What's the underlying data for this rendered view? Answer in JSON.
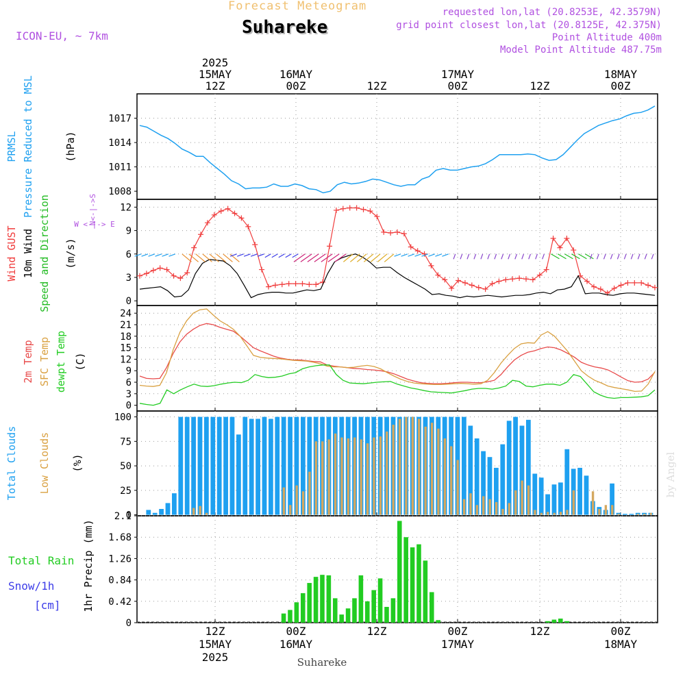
{
  "header": {
    "subtitle": "Forecast Meteogram",
    "location": "Suhareke",
    "model": "ICON-EU, ~ 7km",
    "requested": "requested lon,lat (20.8253E, 42.3579N)",
    "grid_point": "grid point closest lon,lat (20.8125E, 42.375N)",
    "point_altitude": "Point Altitude 400m",
    "model_altitude": "Model Point Altitude 487.75m",
    "footer_label": "Suhareke",
    "credit": "by Angel"
  },
  "colors": {
    "pressure": "#1ea0f0",
    "gust": "#f03c3c",
    "wind": "#000000",
    "direction": "#22bb22",
    "temp": "#e84a4a",
    "sfc": "#d9a040",
    "dew": "#22cc22",
    "total_cloud": "#1ea0f0",
    "low_cloud": "#d4a860",
    "rain": "#22cc22",
    "snow": "#3c3ce8",
    "label_purple": "#b050e0",
    "title_orange": "#f0c070"
  },
  "time_axis": {
    "top_labels": [
      {
        "lines": [
          "2025",
          "15MAY",
          "12Z"
        ],
        "tick": 0
      },
      {
        "lines": [
          "16MAY",
          "00Z"
        ],
        "tick": 1
      },
      {
        "lines": [
          "12Z"
        ],
        "tick": 2
      },
      {
        "lines": [
          "17MAY",
          "00Z"
        ],
        "tick": 3
      },
      {
        "lines": [
          "12Z"
        ],
        "tick": 4
      },
      {
        "lines": [
          "18MAY",
          "00Z"
        ],
        "tick": 5
      }
    ],
    "bottom_labels": [
      {
        "lines": [
          "12Z",
          "15MAY",
          "2025"
        ],
        "tick": 0
      },
      {
        "lines": [
          "00Z",
          "16MAY"
        ],
        "tick": 1
      },
      {
        "lines": [
          "12Z"
        ],
        "tick": 2
      },
      {
        "lines": [
          "00Z",
          "17MAY"
        ],
        "tick": 3
      },
      {
        "lines": [
          "12Z"
        ],
        "tick": 4
      },
      {
        "lines": [
          "00Z",
          "18MAY"
        ],
        "tick": 5
      }
    ]
  },
  "chart_data": [
    {
      "type": "line",
      "title": "PRMSL Pressure Reduced to MSL",
      "ylabel": "(hPa)",
      "ylim": [
        1007,
        1020
      ],
      "yticks": [
        1008,
        1011,
        1014,
        1017
      ],
      "series": [
        {
          "name": "PRMSL",
          "color_key": "pressure",
          "values": [
            1016.1,
            1015.9,
            1015.4,
            1014.9,
            1014.5,
            1013.9,
            1013.2,
            1012.8,
            1012.3,
            1012.3,
            1011.5,
            1010.8,
            1010.1,
            1009.3,
            1008.9,
            1008.3,
            1008.4,
            1008.4,
            1008.5,
            1008.9,
            1008.6,
            1008.6,
            1008.9,
            1008.7,
            1008.3,
            1008.2,
            1007.8,
            1008.0,
            1008.8,
            1009.1,
            1008.9,
            1009.0,
            1009.2,
            1009.5,
            1009.4,
            1009.1,
            1008.8,
            1008.6,
            1008.8,
            1008.8,
            1009.5,
            1009.8,
            1010.6,
            1010.8,
            1010.6,
            1010.6,
            1010.8,
            1011.0,
            1011.1,
            1011.4,
            1011.9,
            1012.5,
            1012.5,
            1012.5,
            1012.5,
            1012.6,
            1012.5,
            1012.1,
            1011.8,
            1011.9,
            1012.5,
            1013.4,
            1014.3,
            1015.1,
            1015.6,
            1016.1,
            1016.4,
            1016.7,
            1016.9,
            1017.3,
            1017.6,
            1017.7,
            1018.0,
            1018.5
          ]
        }
      ]
    },
    {
      "type": "line",
      "title": "Wind GUST / 10m Wind Speed and Direction",
      "ylabel": "(m/s)",
      "direction_legend": [
        "N",
        "W <-|-> E",
        "S"
      ],
      "ylim": [
        -0.6,
        13
      ],
      "yticks": [
        0,
        3,
        6,
        9,
        12
      ],
      "series": [
        {
          "name": "Wind GUST",
          "color_key": "gust",
          "values": [
            3.2,
            3.5,
            3.9,
            4.2,
            4.0,
            3.2,
            2.9,
            3.6,
            6.8,
            8.5,
            10.0,
            11.0,
            11.5,
            11.8,
            11.2,
            10.6,
            9.5,
            7.2,
            4.0,
            1.8,
            2.0,
            2.1,
            2.2,
            2.2,
            2.2,
            2.1,
            2.1,
            2.4,
            7.0,
            11.6,
            11.8,
            11.9,
            11.9,
            11.7,
            11.5,
            10.8,
            8.8,
            8.7,
            8.8,
            8.6,
            6.9,
            6.4,
            6.0,
            4.5,
            3.3,
            2.7,
            1.6,
            2.6,
            2.3,
            2.0,
            1.7,
            1.5,
            2.2,
            2.5,
            2.7,
            2.8,
            2.9,
            2.8,
            2.7,
            3.3,
            4.0,
            8.0,
            6.8,
            8.0,
            6.5,
            3.2,
            2.5,
            1.8,
            1.5,
            1.0,
            1.6,
            2.0,
            2.3,
            2.3,
            2.3,
            2.0,
            1.7
          ]
        },
        {
          "name": "10m Wind",
          "color_key": "wind",
          "values": [
            1.5,
            1.6,
            1.7,
            1.8,
            1.3,
            0.5,
            0.6,
            1.4,
            3.5,
            4.8,
            5.3,
            5.2,
            5.1,
            4.5,
            3.5,
            2.0,
            0.4,
            0.8,
            1.0,
            1.1,
            1.1,
            1.0,
            1.0,
            1.2,
            1.4,
            1.3,
            1.5,
            3.5,
            5.0,
            5.5,
            5.8,
            6.0,
            5.6,
            5.0,
            4.2,
            4.3,
            4.3,
            3.6,
            3.0,
            2.5,
            2.0,
            1.5,
            0.8,
            0.9,
            0.7,
            0.6,
            0.4,
            0.6,
            0.5,
            0.6,
            0.7,
            0.6,
            0.5,
            0.6,
            0.7,
            0.7,
            0.8,
            1.0,
            1.1,
            0.9,
            1.4,
            1.5,
            1.8,
            3.2,
            0.9,
            1.0,
            1.0,
            0.8,
            0.7,
            0.9,
            1.0,
            1.0,
            0.9,
            0.8,
            0.7
          ]
        }
      ]
    },
    {
      "type": "line",
      "title": "2m Temp / SFC Temp / dewpt Temp",
      "ylabel": "(C)",
      "ylim": [
        -1.5,
        26
      ],
      "yticks": [
        0,
        3,
        6,
        9,
        12,
        15,
        18,
        21,
        24
      ],
      "series": [
        {
          "name": "2m Temp",
          "color_key": "temp",
          "values": [
            7.6,
            7.0,
            6.9,
            7.0,
            9.8,
            13.5,
            16.5,
            18.5,
            19.8,
            20.8,
            21.3,
            21.0,
            20.3,
            19.8,
            19.3,
            18.0,
            16.5,
            15.0,
            14.2,
            13.5,
            12.8,
            12.3,
            12.0,
            11.8,
            11.8,
            11.6,
            11.4,
            11.3,
            10.5,
            10.2,
            10.0,
            9.8,
            9.6,
            9.5,
            9.3,
            9.2,
            9.0,
            8.7,
            8.2,
            7.5,
            6.8,
            6.3,
            5.9,
            5.7,
            5.6,
            5.6,
            5.7,
            5.9,
            6.0,
            6.0,
            5.9,
            5.9,
            6.1,
            6.5,
            8.0,
            10.0,
            11.8,
            13.0,
            13.8,
            14.2,
            14.8,
            15.2,
            15.0,
            14.4,
            13.5,
            12.5,
            11.2,
            10.5,
            10.0,
            9.7,
            9.2,
            8.3,
            7.3,
            6.4,
            6.0,
            6.1,
            6.8,
            8.6
          ]
        },
        {
          "name": "SFC Temp",
          "color_key": "sfc",
          "values": [
            5.2,
            5.0,
            4.9,
            5.2,
            8.5,
            14.5,
            19.0,
            22.0,
            24.0,
            24.9,
            25.1,
            23.5,
            22.0,
            21.0,
            19.8,
            18.0,
            15.5,
            13.0,
            12.5,
            12.3,
            12.2,
            12.1,
            11.9,
            11.7,
            11.6,
            11.5,
            11.2,
            10.8,
            10.2,
            10.0,
            10.0,
            9.8,
            9.9,
            10.2,
            10.4,
            10.1,
            9.5,
            8.5,
            7.6,
            6.8,
            6.2,
            5.8,
            5.6,
            5.5,
            5.4,
            5.4,
            5.5,
            5.6,
            5.7,
            5.6,
            5.5,
            5.6,
            6.5,
            8.5,
            11.0,
            13.0,
            14.8,
            16.0,
            16.3,
            16.2,
            18.3,
            19.2,
            18.0,
            16.0,
            14.0,
            11.5,
            9.0,
            7.6,
            6.5,
            5.8,
            5.0,
            4.6,
            4.3,
            4.0,
            3.6,
            3.7,
            5.5,
            8.8
          ]
        },
        {
          "name": "dewpt Temp",
          "color_key": "dew",
          "values": [
            0.5,
            0.2,
            0.0,
            0.5,
            4.0,
            3.0,
            4.0,
            4.8,
            5.5,
            5.0,
            4.9,
            5.1,
            5.5,
            5.8,
            6.0,
            5.9,
            6.5,
            8.0,
            7.5,
            7.2,
            7.3,
            7.6,
            8.2,
            8.5,
            9.5,
            10.0,
            10.3,
            10.5,
            10.5,
            8.0,
            6.5,
            5.8,
            5.7,
            5.6,
            5.8,
            6.0,
            6.1,
            6.2,
            5.5,
            5.0,
            4.5,
            4.2,
            3.8,
            3.5,
            3.4,
            3.3,
            3.2,
            3.5,
            3.8,
            4.2,
            4.4,
            4.4,
            4.2,
            4.5,
            5.0,
            6.5,
            6.2,
            5.0,
            4.8,
            5.2,
            5.5,
            5.5,
            5.2,
            6.0,
            8.0,
            7.5,
            5.5,
            3.5,
            2.6,
            2.0,
            1.8,
            2.0,
            2.0,
            2.1,
            2.2,
            2.5,
            4.0
          ]
        }
      ]
    },
    {
      "type": "bar",
      "title": "Total Clouds / Low Clouds",
      "ylabel": "(%)",
      "ylim": [
        -1,
        106
      ],
      "yticks": [
        0,
        25,
        50,
        75,
        100
      ],
      "series": [
        {
          "name": "Total Clouds",
          "color_key": "total_cloud",
          "values": [
            0,
            5,
            2,
            6,
            12,
            22,
            100,
            100,
            100,
            100,
            100,
            100,
            100,
            100,
            100,
            82,
            100,
            98,
            98,
            100,
            98,
            100,
            100,
            100,
            100,
            100,
            100,
            100,
            100,
            100,
            100,
            100,
            100,
            100,
            100,
            100,
            100,
            100,
            100,
            100,
            100,
            100,
            100,
            100,
            100,
            100,
            100,
            100,
            100,
            100,
            100,
            91,
            78,
            65,
            59,
            48,
            72,
            96,
            100,
            91,
            97,
            42,
            38,
            21,
            31,
            33,
            67,
            47,
            48,
            40,
            14,
            8,
            5,
            32,
            2,
            1,
            1,
            2,
            2,
            2
          ]
        },
        {
          "name": "Low Clouds",
          "color_key": "low_cloud",
          "values": [
            0,
            0,
            0,
            0,
            0,
            0,
            0,
            0,
            7,
            9,
            2,
            0,
            0,
            0,
            0,
            0,
            0,
            0,
            0,
            0,
            0,
            0,
            28,
            10,
            30,
            24,
            44,
            75,
            75,
            77,
            83,
            79,
            78,
            79,
            77,
            73,
            79,
            80,
            85,
            92,
            98,
            100,
            100,
            98,
            90,
            94,
            88,
            78,
            70,
            56,
            16,
            22,
            10,
            19,
            16,
            13,
            6,
            12,
            25,
            35,
            30,
            5,
            2,
            3,
            2,
            3,
            5,
            25,
            0,
            0,
            24,
            6,
            10,
            10,
            1,
            0,
            0,
            1,
            1,
            2
          ]
        }
      ]
    },
    {
      "type": "bar",
      "title": "Total Rain / Snow/1h [cm]",
      "ylabel": "1hr Precip (mm)",
      "ylim": [
        0,
        2.1
      ],
      "yticks": [
        0,
        0.42,
        0.84,
        1.26,
        1.68,
        2.1
      ],
      "ytick_labels": [
        "0",
        "0.42",
        "0.84",
        "1.26",
        "1.68",
        "2.1"
      ],
      "series": [
        {
          "name": "Total Rain",
          "color_key": "rain",
          "values": [
            0,
            0,
            0,
            0,
            0,
            0,
            0,
            0,
            0,
            0,
            0,
            0,
            0,
            0,
            0,
            0,
            0,
            0,
            0,
            0,
            0,
            0,
            0.18,
            0.25,
            0.4,
            0.58,
            0.78,
            0.9,
            0.94,
            0.93,
            0.48,
            0.16,
            0.28,
            0.48,
            0.93,
            0.42,
            0.64,
            0.87,
            0.31,
            0.48,
            2.0,
            1.68,
            1.48,
            1.54,
            1.22,
            0.6,
            0.05,
            0,
            0,
            0,
            0,
            0,
            0,
            0,
            0,
            0,
            0,
            0,
            0,
            0,
            0,
            0,
            0,
            0.03,
            0.06,
            0.08,
            0.03,
            0,
            0,
            0,
            0,
            0,
            0,
            0,
            0,
            0,
            0,
            0,
            0,
            0
          ]
        },
        {
          "name": "Snow/1h",
          "color_key": "snow",
          "values": []
        }
      ]
    }
  ],
  "panel_labels": {
    "p0": [
      "PRMSL",
      "Pressure Reduced to MSL",
      "(hPa)"
    ],
    "p1": [
      "Wind GUST",
      "10m Wind",
      "Speed and Direction",
      "(m/s)"
    ],
    "p2": [
      "2m Temp",
      "SFC Temp",
      "dewpt Temp",
      "(C)"
    ],
    "p3": [
      "Total Clouds",
      "Low Clouds",
      "(%)"
    ],
    "p4_rain": "Total  Rain",
    "p4_snow": "Snow/1h",
    "p4_unit": "[cm]",
    "p4_axis": "1hr Precip (mm)"
  }
}
